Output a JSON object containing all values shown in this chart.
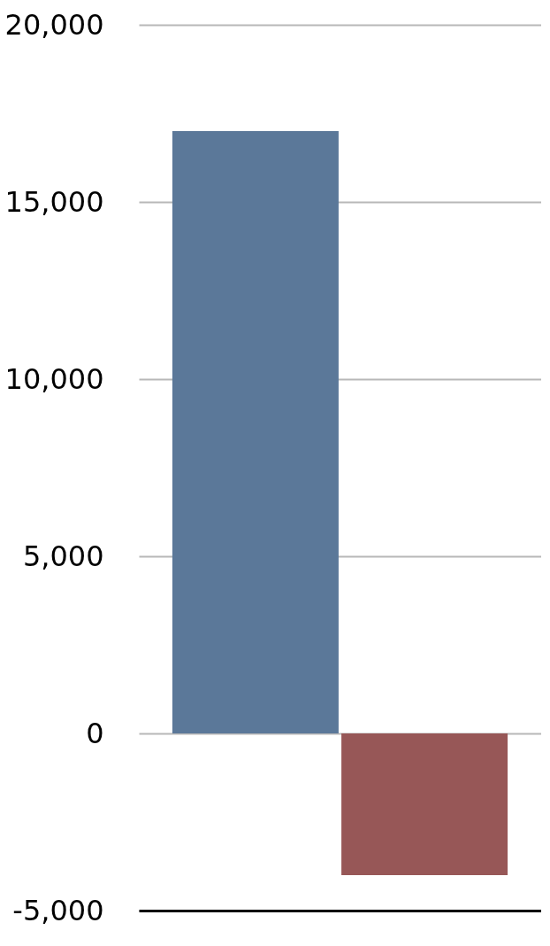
{
  "chart_data": {
    "type": "bar",
    "categories": [
      null,
      null
    ],
    "values": [
      17000,
      -4000
    ],
    "colors": [
      "#5b7899",
      "#975757"
    ],
    "ylim": [
      -5000,
      20000
    ],
    "yticks": [
      {
        "value": -5000,
        "label": "-5,000"
      },
      0,
      {
        "value": 5000,
        "label": "5,000"
      },
      {
        "value": 10000,
        "label": "10,000"
      },
      {
        "value": 15000,
        "label": "15,000"
      },
      {
        "value": 20000,
        "label": "20,000"
      }
    ],
    "grid": "y",
    "tick_labels": "y"
  }
}
